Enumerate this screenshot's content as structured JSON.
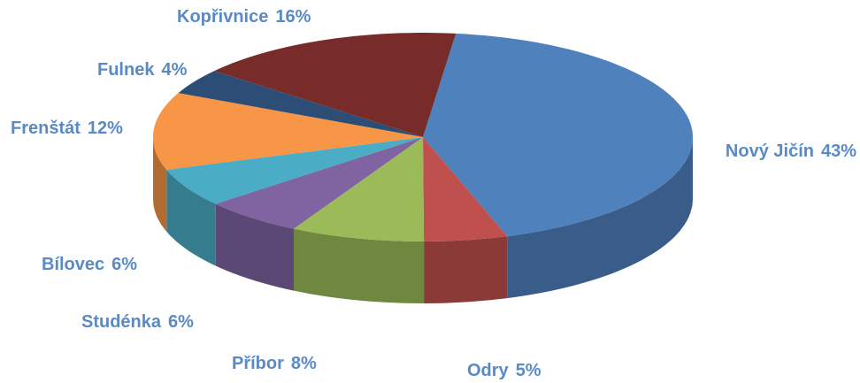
{
  "chart_data": {
    "type": "pie",
    "categories": [
      "Nový Jičín",
      "Odry",
      "Příbor",
      "Studénka",
      "Bílovec",
      "Frenštát",
      "Fulnek",
      "Kopřivnice"
    ],
    "values": [
      43,
      5,
      8,
      6,
      6,
      12,
      4,
      16
    ],
    "value_labels": [
      "43%",
      "5%",
      "8%",
      "6%",
      "6%",
      "12%",
      "4%",
      "16%"
    ],
    "colors": [
      "#4f81bd",
      "#c0504d",
      "#9bbb59",
      "#8064a2",
      "#4bacc6",
      "#f79646",
      "#2c4d75",
      "#772c2a"
    ],
    "three_d": true
  }
}
